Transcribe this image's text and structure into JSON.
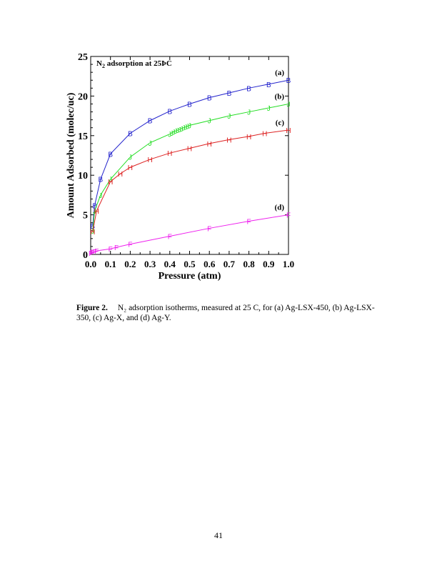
{
  "chart_data": {
    "type": "line",
    "annotation": "N",
    "annotation_sub": "2",
    "annotation_rest": " adsorption at 25ÞC",
    "xlabel": "Pressure (atm)",
    "ylabel": "Amount Adsorbed (molec/uc)",
    "xlim": [
      0,
      1.0
    ],
    "ylim": [
      0,
      25
    ],
    "xticks": [
      0.0,
      0.1,
      0.2,
      0.3,
      0.4,
      0.5,
      0.6,
      0.7,
      0.8,
      0.9,
      1.0
    ],
    "xtick_labels": [
      "0.0",
      "0.1",
      "0.2",
      "0.3",
      "0.4",
      "0.5",
      "0.6",
      "0.7",
      "0.8",
      "0.9",
      "1.0"
    ],
    "yticks": [
      0,
      5,
      10,
      15,
      20,
      25
    ],
    "ytick_labels": [
      "0",
      "5",
      "10",
      "15",
      "20",
      "25"
    ],
    "grid": false,
    "legend": "none",
    "series": [
      {
        "label": "(a)",
        "marker": "B",
        "color": "#2222cc",
        "x": [
          0.01,
          0.02,
          0.05,
          0.1,
          0.2,
          0.3,
          0.4,
          0.5,
          0.6,
          0.7,
          0.8,
          0.9,
          1.0
        ],
        "y": [
          3.6,
          6.2,
          9.5,
          12.7,
          15.3,
          16.9,
          18.1,
          19.0,
          19.8,
          20.4,
          21.0,
          21.5,
          22.0
        ]
      },
      {
        "label": "(b)",
        "marker": "J",
        "color": "#22dd22",
        "x": [
          0.01,
          0.02,
          0.05,
          0.1,
          0.2,
          0.3,
          0.4,
          0.41,
          0.42,
          0.43,
          0.44,
          0.45,
          0.46,
          0.47,
          0.48,
          0.49,
          0.5,
          0.6,
          0.7,
          0.8,
          0.9,
          1.0
        ],
        "y": [
          3.0,
          5.5,
          7.5,
          9.5,
          12.3,
          14.1,
          15.2,
          15.35,
          15.5,
          15.6,
          15.7,
          15.8,
          15.9,
          16.0,
          16.1,
          16.2,
          16.3,
          16.9,
          17.5,
          18.0,
          18.5,
          19.0
        ]
      },
      {
        "label": "(c)",
        "marker": "H",
        "color": "#dd2222",
        "x": [
          0.01,
          0.03,
          0.1,
          0.15,
          0.2,
          0.3,
          0.4,
          0.5,
          0.6,
          0.7,
          0.8,
          0.88,
          1.0
        ],
        "y": [
          2.9,
          5.5,
          9.2,
          10.2,
          11.0,
          12.0,
          12.8,
          13.4,
          14.0,
          14.5,
          14.9,
          15.3,
          15.7
        ]
      },
      {
        "label": "(d)",
        "marker": "F",
        "color": "#ee22ee",
        "x": [
          0.0,
          0.005,
          0.01,
          0.02,
          0.03,
          0.1,
          0.13,
          0.2,
          0.4,
          0.6,
          0.8,
          1.0
        ],
        "y": [
          0.2,
          0.25,
          0.3,
          0.35,
          0.45,
          0.7,
          0.9,
          1.3,
          2.3,
          3.3,
          4.2,
          5.0
        ]
      }
    ]
  },
  "caption": {
    "lead": "Figure 2.",
    "text": "N₂ adsorption isotherms, measured at 25   C, for (a) Ag-LSX-450, (b) Ag-LSX-350, (c) Ag-X, and (d) Ag-Y."
  },
  "page_number": "41"
}
